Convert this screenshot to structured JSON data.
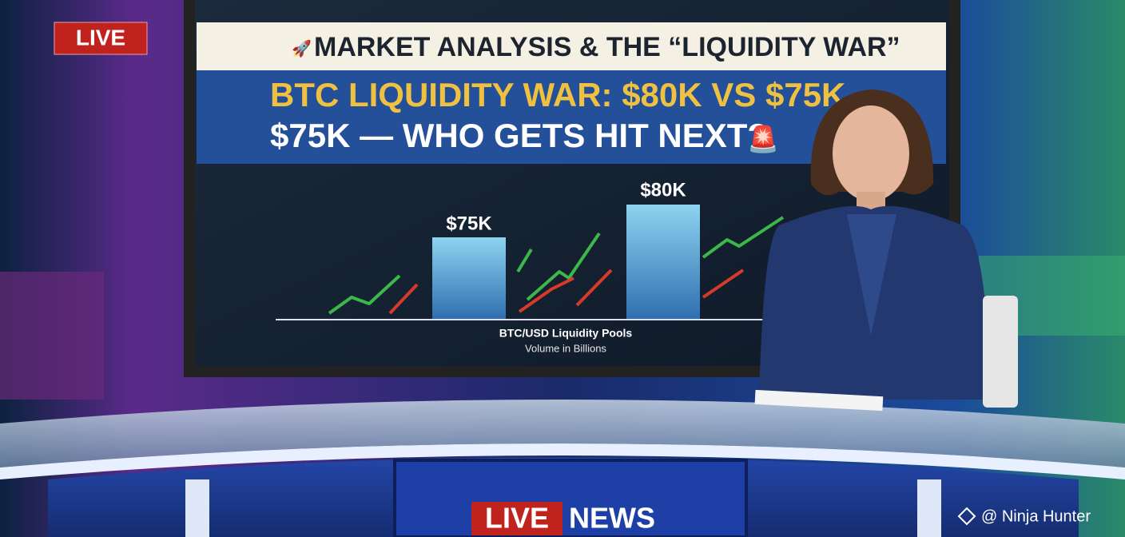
{
  "badge": "LIVE",
  "screen": {
    "banner": "MARKET ANALYSIS & THE “LIQUIDITY WAR”",
    "headline": [
      "BTC LIQUIDITY WAR: $80K VS $75K",
      "$75K — WHO GETS HIT NEXT?"
    ],
    "bars": [
      {
        "label": "$75K"
      },
      {
        "label": "$80K"
      }
    ],
    "caption": "BTC/USD Liquidity Pools",
    "subcaption": "Volume in Billions"
  },
  "desk_logo": {
    "left": "LIVE",
    "right": "NEWS"
  },
  "watermark": "@ Ninja Hunter"
}
